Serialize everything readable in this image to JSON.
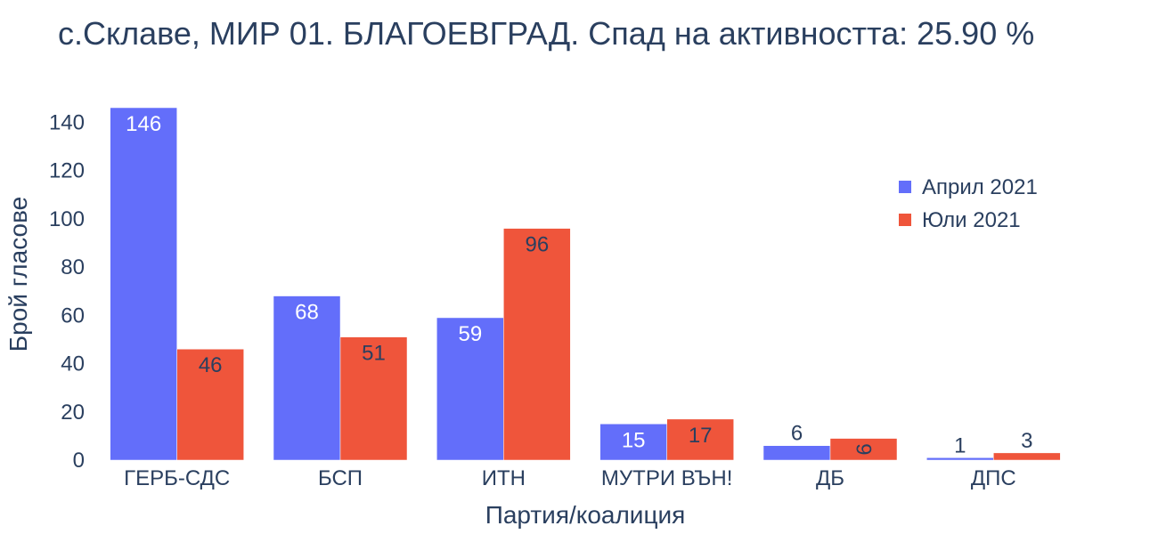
{
  "chart_data": {
    "type": "bar",
    "title": "с.Склаве, МИР 01. БЛАГОЕВГРАД. Спад на активността: 25.90 %",
    "xlabel": "Партия/коалиция",
    "ylabel": "Брой гласове",
    "categories": [
      "ГЕРБ-СДС",
      "БСП",
      "ИТН",
      "МУТРИ ВЪН!",
      "ДБ",
      "ДПС"
    ],
    "series": [
      {
        "name": "Април 2021",
        "color": "#636efa",
        "values": [
          146,
          68,
          59,
          15,
          6,
          1
        ]
      },
      {
        "name": "Юли 2021",
        "color": "#ef553b",
        "values": [
          46,
          51,
          96,
          17,
          9,
          3
        ]
      }
    ],
    "ylim": [
      0,
      146
    ],
    "yticks": [
      0,
      20,
      40,
      60,
      80,
      100,
      120,
      140
    ],
    "grid": false,
    "legend_position": "top-right"
  }
}
